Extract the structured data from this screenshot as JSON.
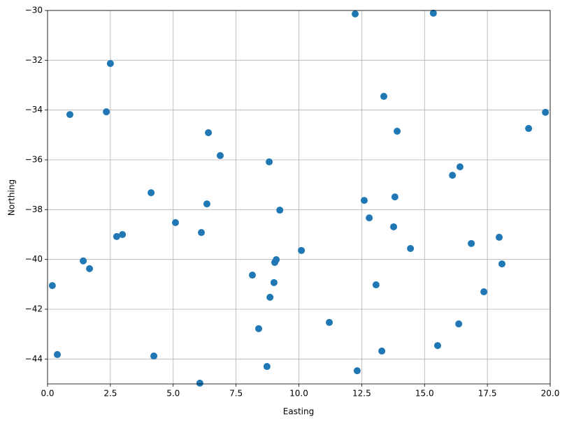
{
  "chart_data": {
    "type": "scatter",
    "x_label": "Easting",
    "y_label": "Northing",
    "color": "#1f77b4",
    "grid": true,
    "xlim": [
      0,
      20
    ],
    "ylim": [
      -45,
      -30
    ],
    "xticks": [
      {
        "value": 0,
        "label": "0.0"
      },
      {
        "value": 2.5,
        "label": "2.5"
      },
      {
        "value": 5,
        "label": "5.0"
      },
      {
        "value": 7.5,
        "label": "7.5"
      },
      {
        "value": 10,
        "label": "10.0"
      },
      {
        "value": 12.5,
        "label": "12.5"
      },
      {
        "value": 15,
        "label": "15.0"
      },
      {
        "value": 17.5,
        "label": "17.5"
      },
      {
        "value": 20,
        "label": "20.0"
      }
    ],
    "yticks": [
      {
        "value": -44,
        "label": "−44"
      },
      {
        "value": -42,
        "label": "−42"
      },
      {
        "value": -40,
        "label": "−40"
      },
      {
        "value": -38,
        "label": "−38"
      },
      {
        "value": -36,
        "label": "−36"
      },
      {
        "value": -34,
        "label": "−34"
      },
      {
        "value": -32,
        "label": "−32"
      },
      {
        "value": -30,
        "label": "−30"
      }
    ],
    "x": [
      0.19,
      0.39,
      0.89,
      1.42,
      1.67,
      2.34,
      2.5,
      2.75,
      2.98,
      4.12,
      4.23,
      5.09,
      6.06,
      6.12,
      6.34,
      6.4,
      6.87,
      8.15,
      8.4,
      8.73,
      8.82,
      8.85,
      9.01,
      9.04,
      9.1,
      9.24,
      10.1,
      11.21,
      12.24,
      12.32,
      12.6,
      12.8,
      13.07,
      13.3,
      13.38,
      13.77,
      13.82,
      13.91,
      14.44,
      15.35,
      15.52,
      16.11,
      16.36,
      16.41,
      16.86,
      17.36,
      17.97,
      18.08,
      19.14,
      19.81
    ],
    "values": [
      -41.05,
      -43.82,
      -34.18,
      -40.06,
      -40.37,
      -34.07,
      -32.13,
      -39.08,
      -39.0,
      -37.32,
      -43.88,
      -38.52,
      -44.97,
      -38.92,
      -37.77,
      -34.91,
      -35.83,
      -40.63,
      -42.78,
      -44.3,
      -36.08,
      -41.52,
      -40.93,
      -40.12,
      -40.01,
      -38.02,
      -39.64,
      -42.53,
      -30.14,
      -44.47,
      -37.63,
      -38.33,
      -41.02,
      -43.68,
      -33.45,
      -38.69,
      -37.49,
      -34.85,
      -39.56,
      -30.11,
      -43.46,
      -36.62,
      -42.59,
      -36.28,
      -39.36,
      -41.3,
      -39.11,
      -40.18,
      -34.74,
      -34.09
    ]
  }
}
